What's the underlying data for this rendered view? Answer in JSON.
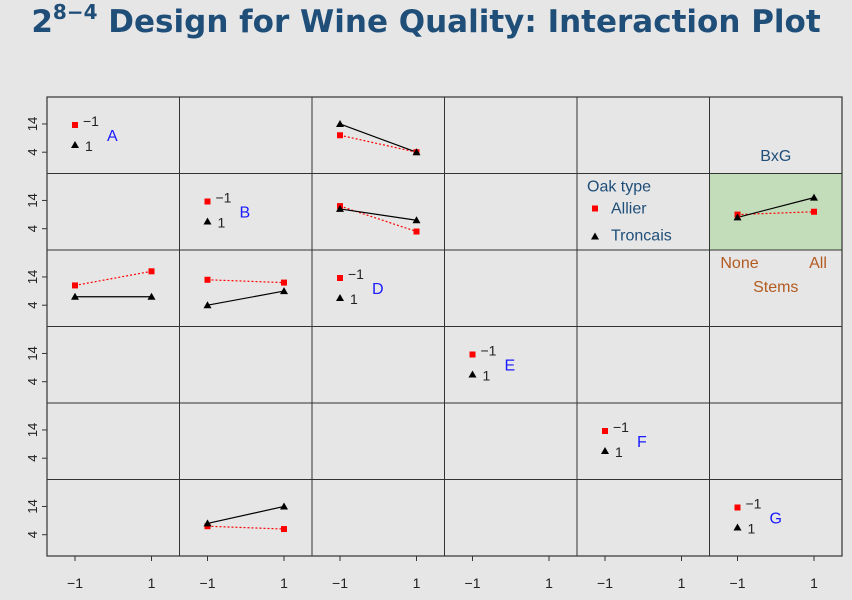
{
  "title": {
    "base": "2",
    "exponent": "8−4",
    "text": "Design for Wine Quality: Interaction Plot"
  },
  "chart_data": {
    "type": "line",
    "layout": "scatterplot-matrix",
    "factors": [
      "A",
      "B",
      "D",
      "E",
      "F",
      "G"
    ],
    "levels": [
      -1,
      1
    ],
    "level_labels": [
      "−1",
      "1"
    ],
    "x_tick_labels": [
      "−1",
      "1"
    ],
    "y_tick_labels": [
      "4",
      "14"
    ],
    "ylim": [
      0,
      20
    ],
    "series_style": {
      "minus": {
        "color": "#ff0000",
        "marker": "square",
        "line": "dotted"
      },
      "plus": {
        "color": "#000000",
        "marker": "triangle",
        "line": "solid"
      }
    },
    "diagonal_labels": [
      {
        "factor": "A",
        "minus": "−1",
        "plus": "1"
      },
      {
        "factor": "B",
        "minus": "−1",
        "plus": "1"
      },
      {
        "factor": "D",
        "minus": "−1",
        "plus": "1"
      },
      {
        "factor": "E",
        "minus": "−1",
        "plus": "1"
      },
      {
        "factor": "F",
        "minus": "−1",
        "plus": "1"
      },
      {
        "factor": "G",
        "minus": "−1",
        "plus": "1"
      }
    ],
    "panels": [
      {
        "row": 0,
        "col": 2,
        "minus": [
          10,
          4
        ],
        "plus": [
          14,
          4
        ]
      },
      {
        "row": 1,
        "col": 2,
        "minus": [
          12,
          3
        ],
        "plus": [
          11,
          7
        ]
      },
      {
        "row": 2,
        "col": 0,
        "minus": [
          11,
          16
        ],
        "plus": [
          7,
          7
        ]
      },
      {
        "row": 2,
        "col": 1,
        "minus": [
          13,
          12
        ],
        "plus": [
          4,
          9
        ]
      },
      {
        "row": 5,
        "col": 1,
        "minus": [
          7,
          6
        ],
        "plus": [
          8,
          14
        ]
      },
      {
        "row": 1,
        "col": 5,
        "minus": [
          9,
          10
        ],
        "plus": [
          8,
          15
        ],
        "highlight": true
      }
    ],
    "annotation": {
      "label": "BxG",
      "x_levels": [
        "None",
        "All"
      ],
      "x_label": "Stems",
      "highlight_color": "#c3dcb9"
    },
    "legend": {
      "title": "Oak type",
      "placement": "right",
      "entries": [
        {
          "name": "Allier",
          "color": "#ff0000",
          "marker": "square"
        },
        {
          "name": "Troncais",
          "color": "#000000",
          "marker": "triangle"
        }
      ]
    }
  },
  "colors": {
    "title": "#1f4e79",
    "factor_label": "#1a1aff",
    "legend_title": "#1f4e79",
    "annotation_text": "#1f4e79",
    "stems_text": "#b35a1f"
  }
}
